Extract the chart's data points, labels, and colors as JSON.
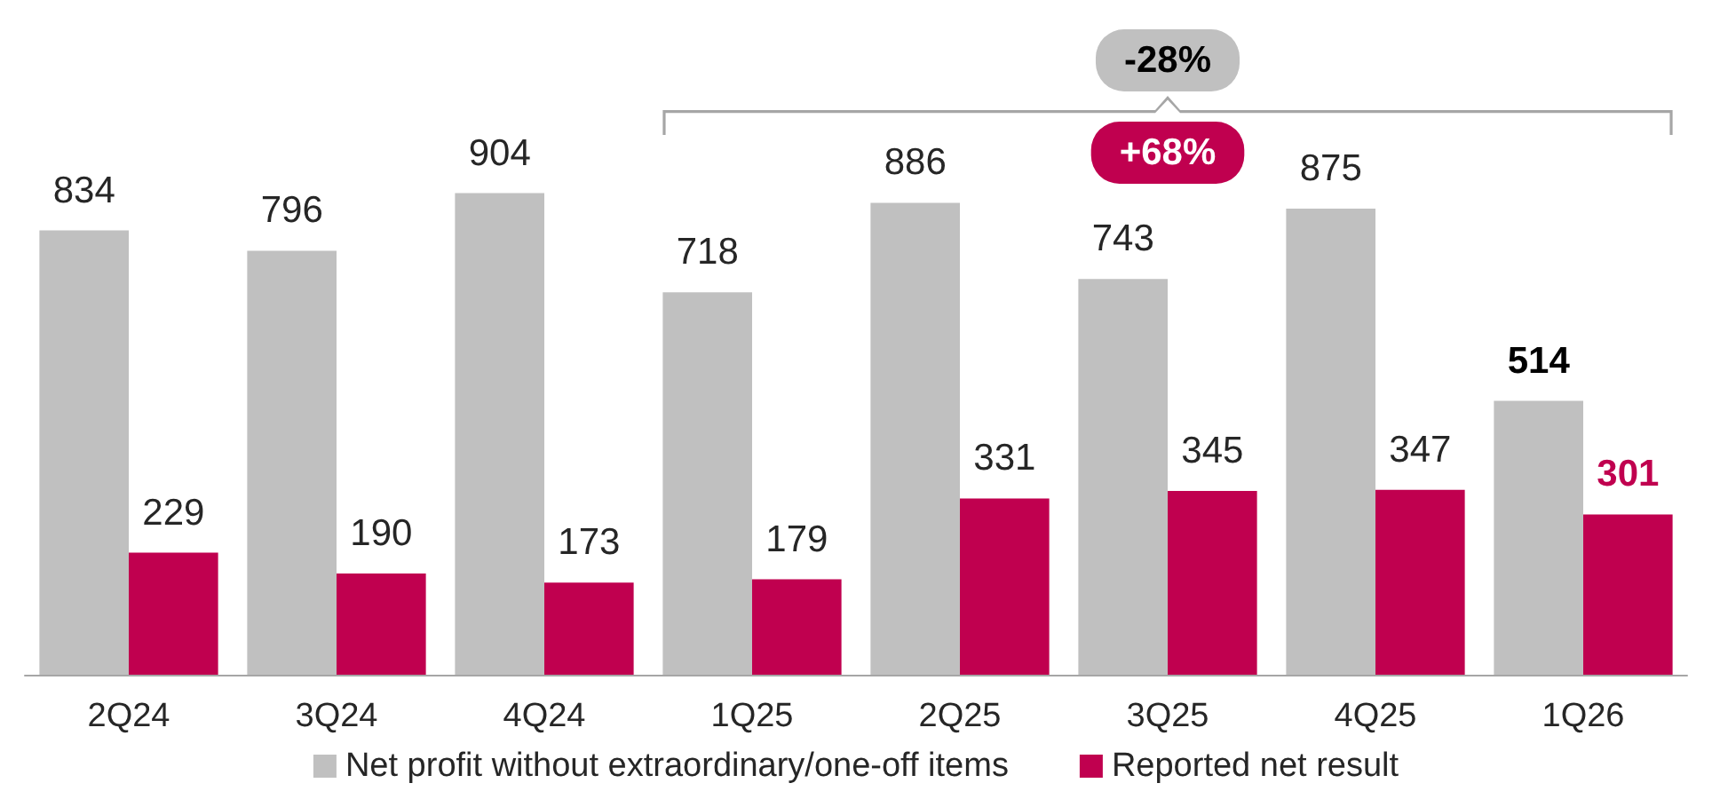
{
  "chart_data": {
    "type": "bar",
    "categories": [
      "2Q24",
      "3Q24",
      "4Q24",
      "1Q25",
      "2Q25",
      "3Q25",
      "4Q25",
      "1Q26"
    ],
    "series": [
      {
        "name": "Net profit without extraordinary/one-off items",
        "color": "#c0c0c0",
        "values": [
          834,
          796,
          904,
          718,
          886,
          743,
          875,
          514
        ]
      },
      {
        "name": "Reported net result",
        "color": "#c0004f",
        "values": [
          229,
          190,
          173,
          179,
          331,
          345,
          347,
          301
        ]
      }
    ],
    "data_labels": true,
    "legend": "bottom",
    "grid": false,
    "annotations": [
      "-28%",
      "+68%"
    ]
  }
}
